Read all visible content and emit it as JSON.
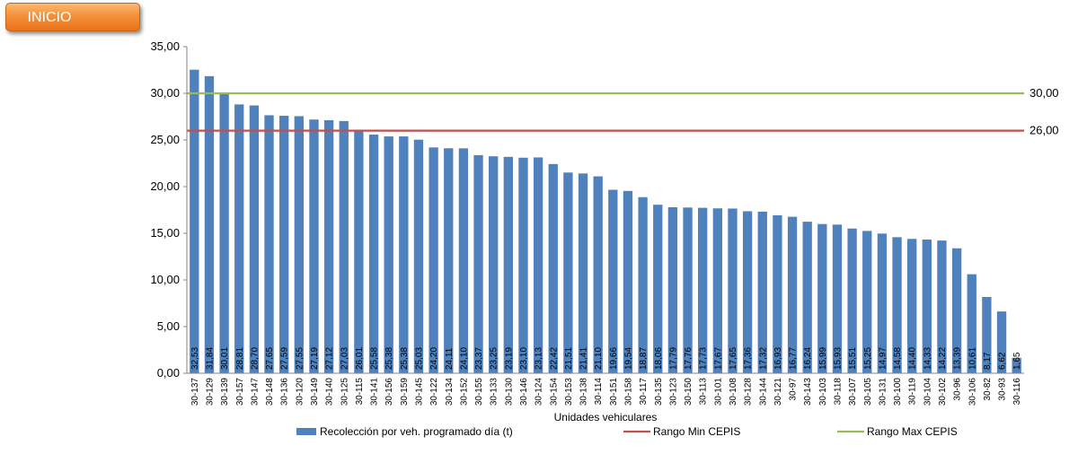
{
  "nav": {
    "inicio_label": "INICIO"
  },
  "chart_data": {
    "type": "bar",
    "xlabel": "Unidades vehiculares",
    "ylabel": "",
    "ylim": [
      0,
      35
    ],
    "yticks": [
      "0,00",
      "5,00",
      "10,00",
      "15,00",
      "20,00",
      "25,00",
      "30,00",
      "35,00"
    ],
    "grid": false,
    "legend_position": "bottom",
    "categories": [
      "30-137",
      "30-129",
      "30-139",
      "30-157",
      "30-147",
      "30-148",
      "30-136",
      "30-120",
      "30-149",
      "30-140",
      "30-125",
      "30-115",
      "30-141",
      "30-156",
      "30-159",
      "30-145",
      "30-122",
      "30-134",
      "30-152",
      "30-155",
      "30-133",
      "30-130",
      "30-146",
      "30-124",
      "30-154",
      "30-153",
      "30-138",
      "30-114",
      "30-151",
      "30-158",
      "30-117",
      "30-135",
      "30-123",
      "30-150",
      "30-113",
      "30-101",
      "30-108",
      "30-128",
      "30-144",
      "30-121",
      "30-97",
      "30-143",
      "30-103",
      "30-118",
      "30-107",
      "30-105",
      "30-131",
      "30-100",
      "30-119",
      "30-104",
      "30-102",
      "30-96",
      "30-106",
      "30-82",
      "30-93",
      "30-116"
    ],
    "series": [
      {
        "name": "Recolección por veh. programado día (t)",
        "color": "#4f81bd",
        "values": [
          32.53,
          31.84,
          30.01,
          28.81,
          28.7,
          27.65,
          27.59,
          27.55,
          27.19,
          27.12,
          27.03,
          26.01,
          25.58,
          25.38,
          25.38,
          25.03,
          24.2,
          24.11,
          24.1,
          23.37,
          23.25,
          23.19,
          23.1,
          23.13,
          22.42,
          21.51,
          21.41,
          21.1,
          19.66,
          19.54,
          18.87,
          18.06,
          17.79,
          17.76,
          17.73,
          17.67,
          17.65,
          17.36,
          17.32,
          16.93,
          16.77,
          16.24,
          15.99,
          15.93,
          15.51,
          15.25,
          14.97,
          14.58,
          14.4,
          14.33,
          14.22,
          13.39,
          10.61,
          8.17,
          6.62,
          1.65
        ],
        "labels": [
          "32,53",
          "31,84",
          "30,01",
          "28,81",
          "28,70",
          "27,65",
          "27,59",
          "27,55",
          "27,19",
          "27,12",
          "27,03",
          "26,01",
          "25,58",
          "25,38",
          "25,38",
          "25,03",
          "24,20",
          "24,11",
          "24,10",
          "23,37",
          "23,25",
          "23,19",
          "23,10",
          "23,13",
          "22,42",
          "21,51",
          "21,41",
          "21,10",
          "19,66",
          "19,54",
          "18,87",
          "18,06",
          "17,79",
          "17,76",
          "17,73",
          "17,67",
          "17,65",
          "17,36",
          "17,32",
          "16,93",
          "16,77",
          "16,24",
          "15,99",
          "15,93",
          "15,51",
          "15,25",
          "14,97",
          "14,58",
          "14,40",
          "14,33",
          "14,22",
          "13,39",
          "10,61",
          "8,17",
          "6,62",
          "1,65"
        ]
      }
    ],
    "reference_lines": [
      {
        "name": "Rango Min CEPIS",
        "value": 26,
        "label": "26,00",
        "color": "#c0504d"
      },
      {
        "name": "Rango Max CEPIS",
        "value": 30,
        "label": "30,00",
        "color": "#9bbb59"
      }
    ]
  }
}
